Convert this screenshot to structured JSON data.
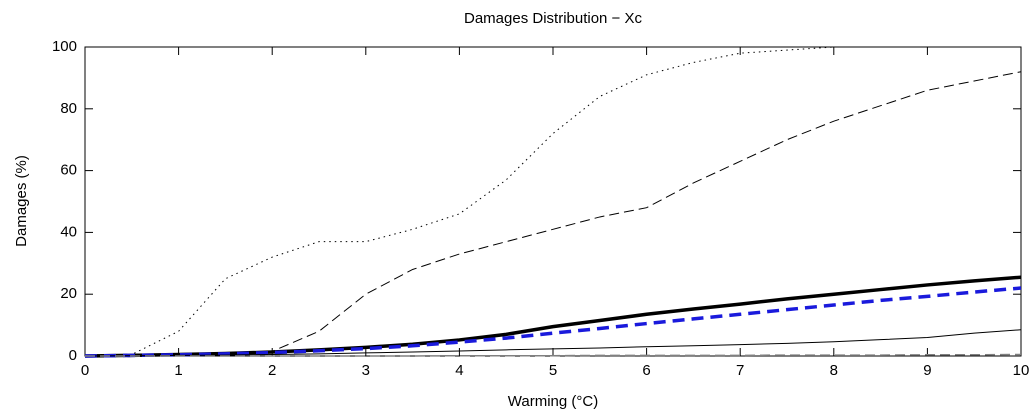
{
  "chart_data": {
    "type": "line",
    "title": "Damages Distribution − Xc",
    "xlabel": "Warming (°C)",
    "ylabel": "Damages (%)",
    "x": [
      0,
      0.5,
      1,
      1.5,
      2,
      2.5,
      3,
      3.5,
      4,
      4.5,
      5,
      5.5,
      6,
      6.5,
      7,
      7.5,
      8,
      8.5,
      9,
      9.5,
      10
    ],
    "xlim": [
      0,
      10
    ],
    "xticks": [
      0,
      1,
      2,
      3,
      4,
      5,
      6,
      7,
      8,
      9,
      10
    ],
    "ylim": [
      0,
      100
    ],
    "yticks": [
      0,
      20,
      40,
      60,
      80,
      100
    ],
    "series": [
      {
        "color": "#000000",
        "style": "dotted",
        "width": 1,
        "values": [
          0,
          0.5,
          8,
          25,
          32,
          37,
          37,
          41,
          46,
          57,
          72,
          84,
          91,
          95,
          98,
          99,
          100,
          100,
          100,
          100,
          100
        ]
      },
      {
        "color": "#000000",
        "style": "dashed",
        "width": 1,
        "values": [
          0,
          0,
          0.3,
          0.7,
          1.5,
          8,
          20,
          28,
          33,
          37,
          41,
          45,
          48,
          56,
          63,
          70,
          76,
          81,
          86,
          89,
          92
        ]
      },
      {
        "color": "#000000",
        "style": "solid",
        "width": 3.5,
        "values": [
          0,
          0.2,
          0.5,
          0.8,
          1.3,
          2,
          2.8,
          3.8,
          5.2,
          7,
          9.5,
          11.5,
          13.5,
          15.2,
          16.8,
          18.5,
          20,
          21.5,
          23,
          24.3,
          25.5
        ]
      },
      {
        "color": "#1a1adc",
        "style": "dashed",
        "width": 3.5,
        "values": [
          0,
          0.2,
          0.4,
          0.7,
          1.1,
          1.7,
          2.4,
          3.3,
          4.5,
          5.8,
          7.4,
          8.9,
          10.5,
          12,
          13.5,
          15,
          16.5,
          18,
          19.3,
          20.7,
          22
        ]
      },
      {
        "color": "#000000",
        "style": "solid",
        "width": 1,
        "values": [
          0,
          0.1,
          0.2,
          0.3,
          0.5,
          0.7,
          1,
          1.3,
          1.6,
          2,
          2.3,
          2.6,
          3,
          3.3,
          3.7,
          4.1,
          4.6,
          5.3,
          6,
          7.4,
          8.5
        ]
      },
      {
        "color": "#808080",
        "style": "dashed",
        "width": 1.5,
        "values": [
          0,
          0,
          0,
          0,
          0,
          0,
          0,
          0,
          0.1,
          0.1,
          0.1,
          0.2,
          0.2,
          0.2,
          0.2,
          0.3,
          0.3,
          0.3,
          0.4,
          0.4,
          0.5
        ]
      }
    ]
  }
}
